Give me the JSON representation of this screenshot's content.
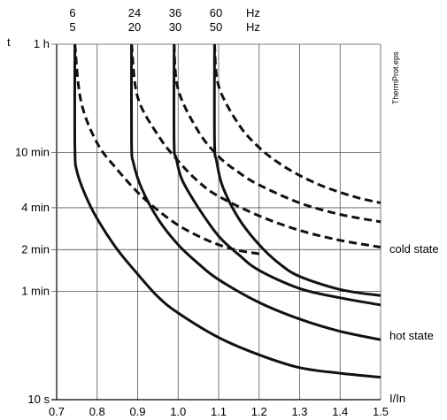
{
  "chart_data": {
    "type": "line",
    "xlabel": "I/In",
    "ylabel": "t",
    "side_label": "ThermProt.eps",
    "x_ticks": [
      "0.7",
      "0.8",
      "0.9",
      "1.0",
      "1.1",
      "1.2",
      "1.3",
      "1.4",
      "1.5"
    ],
    "x_tick_values": [
      0.7,
      0.8,
      0.9,
      1.0,
      1.1,
      1.2,
      1.3,
      1.4,
      1.5
    ],
    "xlim": [
      0.7,
      1.5
    ],
    "y_scale": "log",
    "y_ticks": [
      "1 h",
      "10 min",
      "4 min",
      "2 min",
      "1 min",
      "10 s"
    ],
    "y_tick_values_s": [
      3600,
      600,
      240,
      120,
      60,
      10
    ],
    "ylim_s": [
      10,
      3600
    ],
    "freq_rows": [
      {
        "labels": [
          "6",
          "24",
          "36",
          "60"
        ],
        "unit": "Hz"
      },
      {
        "labels": [
          "5",
          "20",
          "30",
          "50"
        ],
        "unit": "Hz"
      }
    ],
    "state_labels": {
      "cold": "cold state",
      "hot": "hot state"
    },
    "grid": true,
    "series": [
      {
        "state": "hot",
        "x": [
          0.745,
          0.745,
          0.75,
          0.77,
          0.8,
          0.85,
          0.9,
          0.95,
          1.0,
          1.1,
          1.2,
          1.3,
          1.4,
          1.5
        ],
        "y": [
          3600,
          650,
          440,
          300,
          200,
          120,
          80,
          55,
          42,
          28,
          21,
          17,
          15.5,
          14.5
        ]
      },
      {
        "state": "hot",
        "x": [
          0.885,
          0.885,
          0.89,
          0.91,
          0.95,
          1.0,
          1.05,
          1.1,
          1.2,
          1.3,
          1.4,
          1.5
        ],
        "y": [
          3600,
          700,
          500,
          330,
          200,
          130,
          95,
          73,
          50,
          38,
          31,
          27
        ]
      },
      {
        "state": "hot",
        "x": [
          0.99,
          0.99,
          0.995,
          1.01,
          1.05,
          1.1,
          1.15,
          1.2,
          1.3,
          1.4,
          1.5
        ],
        "y": [
          3600,
          700,
          550,
          380,
          240,
          150,
          110,
          85,
          63,
          54,
          48
        ]
      },
      {
        "state": "hot",
        "x": [
          1.09,
          1.09,
          1.095,
          1.11,
          1.15,
          1.2,
          1.25,
          1.3,
          1.4,
          1.5
        ],
        "y": [
          3600,
          700,
          520,
          340,
          200,
          130,
          95,
          77,
          62,
          56
        ]
      },
      {
        "state": "cold",
        "x": [
          0.745,
          0.76,
          0.8,
          0.85,
          0.9,
          0.95,
          1.0,
          1.05,
          1.1,
          1.15,
          1.2
        ],
        "y": [
          3600,
          1400,
          700,
          450,
          310,
          230,
          180,
          150,
          130,
          118,
          112
        ]
      },
      {
        "state": "cold",
        "x": [
          0.885,
          0.9,
          0.95,
          1.0,
          1.05,
          1.1,
          1.2,
          1.3,
          1.4,
          1.5
        ],
        "y": [
          3600,
          1500,
          800,
          520,
          370,
          290,
          210,
          165,
          140,
          125
        ]
      },
      {
        "state": "cold",
        "x": [
          0.99,
          1.0,
          1.05,
          1.1,
          1.15,
          1.2,
          1.3,
          1.4,
          1.5
        ],
        "y": [
          3600,
          1700,
          850,
          560,
          430,
          350,
          260,
          215,
          190
        ]
      },
      {
        "state": "cold",
        "x": [
          1.09,
          1.1,
          1.15,
          1.2,
          1.25,
          1.3,
          1.35,
          1.4,
          1.45,
          1.5
        ],
        "y": [
          3600,
          1800,
          950,
          650,
          500,
          410,
          350,
          310,
          280,
          260
        ]
      }
    ]
  }
}
